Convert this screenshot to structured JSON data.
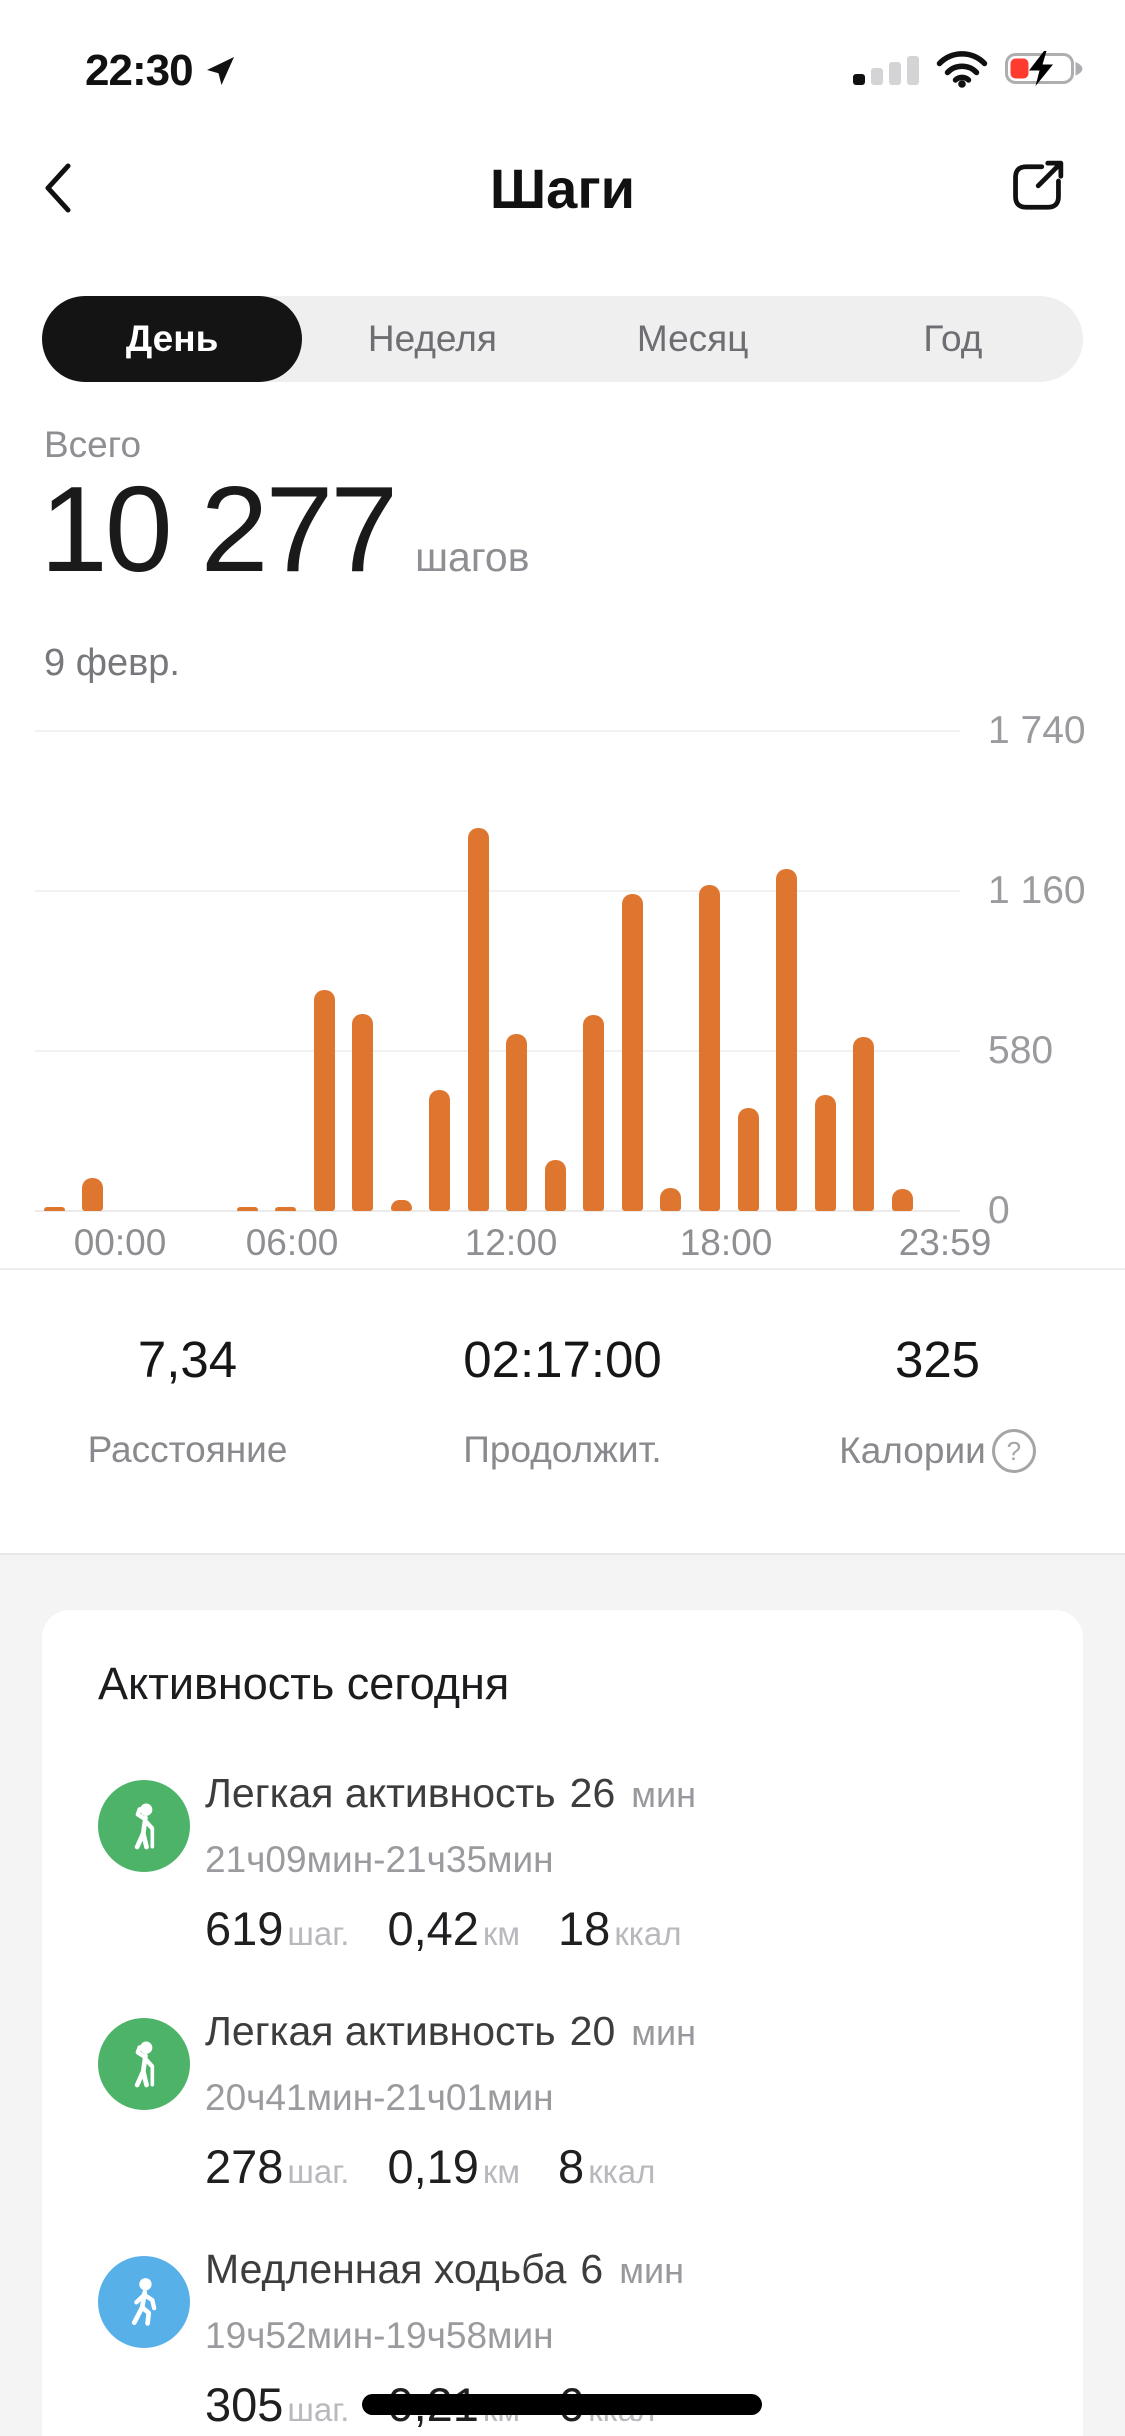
{
  "colors": {
    "bar_orange": "#df7630",
    "activity_green": "#4db368",
    "activity_blue": "#58b0e8",
    "battery_red": "#ff3b30"
  },
  "status_bar": {
    "time": "22:30"
  },
  "header": {
    "title": "Шаги"
  },
  "tabs": {
    "day": "День",
    "week": "Неделя",
    "month": "Месяц",
    "year": "Год",
    "active": "День"
  },
  "summary": {
    "label": "Всего",
    "value": "10 277",
    "unit": "шагов",
    "date": "9 февр."
  },
  "chart_data": {
    "type": "bar",
    "title": "",
    "xlabel": "",
    "ylabel": "",
    "x_hours": [
      0,
      1,
      2,
      3,
      4,
      5,
      6,
      7,
      8,
      9,
      10,
      11,
      12,
      13,
      14,
      15,
      16,
      17,
      18,
      19,
      20,
      21,
      22,
      23
    ],
    "values": [
      10,
      120,
      0,
      0,
      0,
      10,
      10,
      800,
      715,
      40,
      440,
      1390,
      640,
      185,
      710,
      1150,
      85,
      1180,
      375,
      1240,
      420,
      630,
      80,
      0
    ],
    "x_tick_labels": [
      "00:00",
      "06:00",
      "12:00",
      "18:00",
      "23:59"
    ],
    "y_ticks": [
      0,
      580,
      1160,
      1740
    ],
    "y_tick_labels": [
      "0",
      "580",
      "1 160",
      "1 740"
    ],
    "ylim": [
      0,
      1740
    ],
    "grid": "horizontal",
    "legend": "none",
    "bar_color": "#df7630"
  },
  "stats": {
    "distance": {
      "value": "7,34",
      "label": "Расстояние"
    },
    "duration": {
      "value": "02:17:00",
      "label": "Продолжит."
    },
    "calories": {
      "value": "325",
      "label": "Калории",
      "help_glyph": "?"
    }
  },
  "activity": {
    "title": "Активность сегодня",
    "rows": [
      {
        "icon": "light-activity",
        "name": "Легкая активность",
        "duration_value": "26",
        "duration_unit": "мин",
        "time_range": "21ч09мин-21ч35мин",
        "steps": "619",
        "steps_unit": "шаг.",
        "distance": "0,42",
        "distance_unit": "км",
        "calories": "18",
        "calories_unit": "ккал"
      },
      {
        "icon": "light-activity",
        "name": "Легкая активность",
        "duration_value": "20",
        "duration_unit": "мин",
        "time_range": "20ч41мин-21ч01мин",
        "steps": "278",
        "steps_unit": "шаг.",
        "distance": "0,19",
        "distance_unit": "км",
        "calories": "8",
        "calories_unit": "ккал"
      },
      {
        "icon": "slow-walking",
        "name": "Медленная ходьба",
        "duration_value": "6",
        "duration_unit": "мин",
        "time_range": "19ч52мин-19ч58мин",
        "steps": "305",
        "steps_unit": "шаг.",
        "distance": "0,21",
        "distance_unit": "км",
        "calories": "6",
        "calories_unit": "ккал"
      }
    ]
  }
}
